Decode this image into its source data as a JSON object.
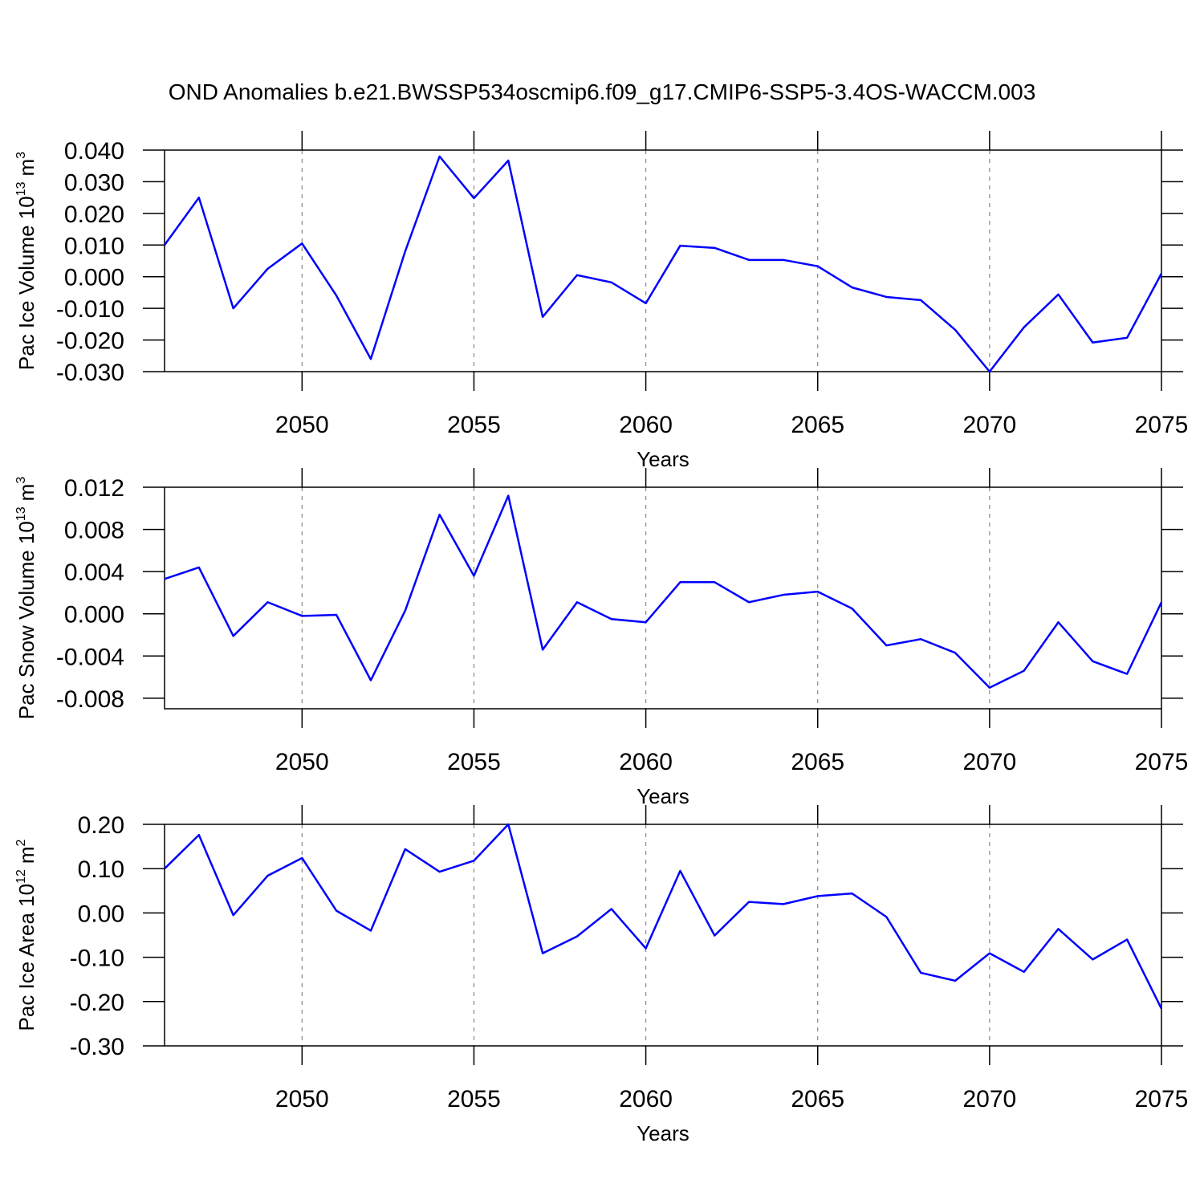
{
  "title": "OND Anomalies b.e21.BWSSP534oscmip6.f09_g17.CMIP6-SSP5-3.4OS-WACCM.003",
  "chart_data": [
    {
      "type": "line",
      "ylabel": {
        "base": "Pac Ice Volume 10",
        "exponent": "13",
        "unit": "m",
        "unit_exponent": "3"
      },
      "xlabel": "Years",
      "x": [
        2046,
        2047,
        2048,
        2049,
        2050,
        2051,
        2052,
        2053,
        2054,
        2055,
        2056,
        2057,
        2058,
        2059,
        2060,
        2061,
        2062,
        2063,
        2064,
        2065,
        2066,
        2067,
        2068,
        2069,
        2070,
        2071,
        2072,
        2073,
        2074,
        2075
      ],
      "values": [
        0.01,
        0.025,
        -0.01,
        0.0025,
        0.0105,
        -0.006,
        -0.026,
        0.008,
        0.038,
        0.0248,
        0.0367,
        -0.0127,
        0.0005,
        -0.0018,
        -0.0084,
        0.0098,
        0.0091,
        0.0053,
        0.0053,
        0.0033,
        -0.0034,
        -0.0064,
        -0.0074,
        -0.0168,
        -0.03,
        -0.016,
        -0.0056,
        -0.0208,
        -0.0193,
        0.001
      ],
      "color": "#0000ff",
      "xlim": [
        2046,
        2075
      ],
      "ylim": [
        -0.03,
        0.04
      ],
      "xticks": [
        2050,
        2055,
        2060,
        2065,
        2070,
        2075
      ],
      "yticks": [
        {
          "value": 0.04,
          "label": "0.040"
        },
        {
          "value": 0.03,
          "label": "0.030"
        },
        {
          "value": 0.02,
          "label": "0.020"
        },
        {
          "value": 0.01,
          "label": "0.010"
        },
        {
          "value": 0,
          "label": "0.000"
        },
        {
          "value": -0.01,
          "label": "-0.010"
        },
        {
          "value": -0.02,
          "label": "-0.020"
        },
        {
          "value": -0.03,
          "label": "-0.030"
        }
      ],
      "grid": "x"
    },
    {
      "type": "line",
      "ylabel": {
        "base": "Pac Snow Volume 10",
        "exponent": "13",
        "unit": "m",
        "unit_exponent": "3"
      },
      "xlabel": "Years",
      "x": [
        2046,
        2047,
        2048,
        2049,
        2050,
        2051,
        2052,
        2053,
        2054,
        2055,
        2056,
        2057,
        2058,
        2059,
        2060,
        2061,
        2062,
        2063,
        2064,
        2065,
        2066,
        2067,
        2068,
        2069,
        2070,
        2071,
        2072,
        2073,
        2074,
        2075
      ],
      "values": [
        0.0033,
        0.0044,
        -0.0021,
        0.0011,
        -0.0002,
        -0.0001,
        -0.0063,
        0.0003,
        0.0094,
        0.0036,
        0.0112,
        -0.0034,
        0.0011,
        -0.0005,
        -0.0008,
        0.003,
        0.003,
        0.0011,
        0.0018,
        0.0021,
        0.0005,
        -0.003,
        -0.0024,
        -0.0037,
        -0.007,
        -0.0054,
        -0.0008,
        -0.0045,
        -0.0057,
        0.0011
      ],
      "color": "#0000ff",
      "xlim": [
        2046,
        2075
      ],
      "ylim": [
        -0.009,
        0.012
      ],
      "xticks": [
        2050,
        2055,
        2060,
        2065,
        2070,
        2075
      ],
      "yticks": [
        {
          "value": 0.012,
          "label": "0.012"
        },
        {
          "value": 0.008,
          "label": "0.008"
        },
        {
          "value": 0.004,
          "label": "0.004"
        },
        {
          "value": 0,
          "label": "0.000"
        },
        {
          "value": -0.004,
          "label": "-0.004"
        },
        {
          "value": -0.008,
          "label": "-0.008"
        }
      ],
      "grid": "x"
    },
    {
      "type": "line",
      "ylabel": {
        "base": "Pac Ice Area 10",
        "exponent": "12",
        "unit": "m",
        "unit_exponent": "2"
      },
      "xlabel": "Years",
      "x": [
        2046,
        2047,
        2048,
        2049,
        2050,
        2051,
        2052,
        2053,
        2054,
        2055,
        2056,
        2057,
        2058,
        2059,
        2060,
        2061,
        2062,
        2063,
        2064,
        2065,
        2066,
        2067,
        2068,
        2069,
        2070,
        2071,
        2072,
        2073,
        2074,
        2075
      ],
      "values": [
        0.1,
        0.176,
        -0.005,
        0.084,
        0.124,
        0.005,
        -0.04,
        0.144,
        0.093,
        0.118,
        0.2,
        -0.091,
        -0.053,
        0.009,
        -0.08,
        0.095,
        -0.051,
        0.025,
        0.02,
        0.038,
        0.044,
        -0.009,
        -0.135,
        -0.153,
        -0.091,
        -0.133,
        -0.036,
        -0.105,
        -0.06,
        -0.216
      ],
      "color": "#0000ff",
      "xlim": [
        2046,
        2075
      ],
      "ylim": [
        -0.3,
        0.2
      ],
      "xticks": [
        2050,
        2055,
        2060,
        2065,
        2070,
        2075
      ],
      "yticks": [
        {
          "value": 0.2,
          "label": "0.20"
        },
        {
          "value": 0.1,
          "label": "0.10"
        },
        {
          "value": 0,
          "label": "0.00"
        },
        {
          "value": -0.1,
          "label": "-0.10"
        },
        {
          "value": -0.2,
          "label": "-0.20"
        },
        {
          "value": -0.3,
          "label": "-0.30"
        }
      ],
      "grid": "x"
    }
  ]
}
